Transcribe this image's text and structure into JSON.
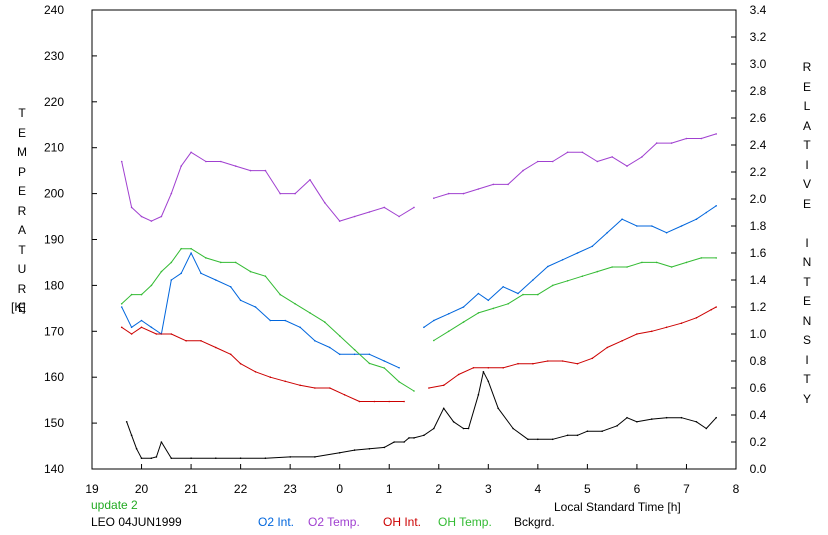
{
  "chart_data": {
    "type": "line",
    "xlabel": "Local Standard Time [h]",
    "x_ticks": [
      "19",
      "20",
      "21",
      "22",
      "23",
      "0",
      "1",
      "2",
      "3",
      "4",
      "5",
      "6",
      "7",
      "8"
    ],
    "y_left_label": "TEMPERATURE",
    "y_left_unit": "[K]",
    "y_left_ticks": [
      "140",
      "150",
      "160",
      "170",
      "180",
      "190",
      "200",
      "210",
      "220",
      "230",
      "240"
    ],
    "y_left_range": [
      140,
      240
    ],
    "y_right_label": "RELATIVE INTENSITY",
    "y_right_ticks": [
      "0.0",
      "0.2",
      "0.4",
      "0.6",
      "0.8",
      "1.0",
      "1.2",
      "1.4",
      "1.6",
      "1.8",
      "2.0",
      "2.2",
      "2.4",
      "2.6",
      "2.8",
      "3.0",
      "3.2",
      "3.4"
    ],
    "y_right_range": [
      0,
      3.4
    ],
    "x_range": [
      19,
      32
    ],
    "grid": false,
    "legend_placement": "bottom",
    "status_text": "update 2",
    "station_date": "LEO 04JUN1999",
    "series": [
      {
        "name": "O2 Int.",
        "axis": "right",
        "color": "#0066dd",
        "x": [
          19.6,
          19.8,
          20.0,
          20.2,
          20.4,
          20.6,
          20.8,
          21.0,
          21.2,
          21.5,
          21.8,
          22.0,
          22.3,
          22.6,
          22.9,
          23.2,
          23.5,
          23.8,
          24.0,
          24.3,
          24.6,
          24.9,
          25.2,
          25.5,
          25.7,
          25.9,
          26.2,
          26.5,
          26.8,
          27.0,
          27.3,
          27.6,
          27.9,
          28.2,
          28.5,
          28.8,
          29.1,
          29.4,
          29.7,
          30.0,
          30.3,
          30.6,
          30.9,
          31.2,
          31.4,
          31.6
        ],
        "y": [
          1.2,
          1.05,
          1.1,
          1.05,
          1.0,
          1.4,
          1.45,
          1.6,
          1.45,
          1.4,
          1.35,
          1.25,
          1.2,
          1.1,
          1.1,
          1.05,
          0.95,
          0.9,
          0.85,
          0.85,
          0.85,
          0.8,
          0.75,
          null,
          1.05,
          1.1,
          1.15,
          1.2,
          1.3,
          1.25,
          1.35,
          1.3,
          1.4,
          1.5,
          1.55,
          1.6,
          1.65,
          1.75,
          1.85,
          1.8,
          1.8,
          1.75,
          1.8,
          1.85,
          1.9,
          1.95
        ]
      },
      {
        "name": "O2 Temp.",
        "axis": "left",
        "color": "#a040d0",
        "x": [
          19.6,
          19.8,
          20.0,
          20.2,
          20.4,
          20.6,
          20.8,
          21.0,
          21.3,
          21.6,
          21.9,
          22.2,
          22.5,
          22.8,
          23.1,
          23.4,
          23.7,
          24.0,
          24.3,
          24.6,
          24.9,
          25.2,
          25.5,
          25.7,
          25.9,
          26.2,
          26.5,
          26.8,
          27.1,
          27.4,
          27.7,
          28.0,
          28.3,
          28.6,
          28.9,
          29.2,
          29.5,
          29.8,
          30.1,
          30.4,
          30.7,
          31.0,
          31.3,
          31.6
        ],
        "y": [
          207,
          197,
          195,
          194,
          195,
          200,
          206,
          209,
          207,
          207,
          206,
          205,
          205,
          200,
          200,
          203,
          198,
          194,
          195,
          196,
          197,
          195,
          197,
          null,
          199,
          200,
          200,
          201,
          202,
          202,
          205,
          207,
          207,
          209,
          209,
          207,
          208,
          206,
          208,
          211,
          211,
          212,
          212,
          213
        ]
      },
      {
        "name": "OH Int.",
        "axis": "right",
        "color": "#cc0000",
        "x": [
          19.6,
          19.8,
          20.0,
          20.3,
          20.6,
          20.9,
          21.2,
          21.5,
          21.8,
          22.0,
          22.3,
          22.6,
          22.9,
          23.2,
          23.5,
          23.8,
          24.1,
          24.4,
          24.7,
          25.0,
          25.3,
          25.6,
          25.8,
          26.1,
          26.4,
          26.7,
          27.0,
          27.3,
          27.6,
          27.9,
          28.2,
          28.5,
          28.8,
          29.1,
          29.4,
          29.7,
          30.0,
          30.3,
          30.6,
          30.9,
          31.2,
          31.5,
          31.6
        ],
        "y": [
          1.05,
          1.0,
          1.05,
          1.0,
          1.0,
          0.95,
          0.95,
          0.9,
          0.85,
          0.78,
          0.72,
          0.68,
          0.65,
          0.62,
          0.6,
          0.6,
          0.55,
          0.5,
          0.5,
          0.5,
          0.5,
          null,
          0.6,
          0.62,
          0.7,
          0.75,
          0.75,
          0.75,
          0.78,
          0.78,
          0.8,
          0.8,
          0.78,
          0.82,
          0.9,
          0.95,
          1.0,
          1.02,
          1.05,
          1.08,
          1.12,
          1.18,
          1.2
        ]
      },
      {
        "name": "OH Temp.",
        "axis": "left",
        "color": "#33bb33",
        "x": [
          19.6,
          19.8,
          20.0,
          20.2,
          20.4,
          20.6,
          20.8,
          21.0,
          21.3,
          21.6,
          21.9,
          22.2,
          22.5,
          22.8,
          23.1,
          23.4,
          23.7,
          24.0,
          24.3,
          24.6,
          24.9,
          25.2,
          25.5,
          25.7,
          25.9,
          26.2,
          26.5,
          26.8,
          27.1,
          27.4,
          27.7,
          28.0,
          28.3,
          28.6,
          28.9,
          29.2,
          29.5,
          29.8,
          30.1,
          30.4,
          30.7,
          31.0,
          31.3,
          31.6
        ],
        "y": [
          176,
          178,
          178,
          180,
          183,
          185,
          188,
          188,
          186,
          185,
          185,
          183,
          182,
          178,
          176,
          174,
          172,
          169,
          166,
          163,
          162,
          159,
          157,
          null,
          168,
          170,
          172,
          174,
          175,
          176,
          178,
          178,
          180,
          181,
          182,
          183,
          184,
          184,
          185,
          185,
          184,
          185,
          186,
          186
        ]
      },
      {
        "name": "Bckgrd.",
        "axis": "right",
        "color": "#000000",
        "x": [
          19.7,
          19.8,
          19.9,
          20.0,
          20.2,
          20.3,
          20.4,
          20.6,
          21.0,
          21.5,
          22.0,
          22.5,
          23.0,
          23.5,
          24.0,
          24.3,
          24.6,
          24.9,
          25.1,
          25.3,
          25.4,
          25.5,
          25.7,
          25.9,
          26.1,
          26.3,
          26.5,
          26.6,
          26.8,
          26.9,
          27.0,
          27.2,
          27.5,
          27.8,
          28.0,
          28.3,
          28.6,
          28.8,
          29.0,
          29.3,
          29.6,
          29.8,
          30.0,
          30.3,
          30.6,
          30.9,
          31.2,
          31.4,
          31.6
        ],
        "y": [
          0.35,
          0.25,
          0.15,
          0.08,
          0.08,
          0.09,
          0.2,
          0.08,
          0.08,
          0.08,
          0.08,
          0.08,
          0.09,
          0.09,
          0.12,
          0.14,
          0.15,
          0.16,
          0.2,
          0.2,
          0.23,
          0.23,
          0.25,
          0.3,
          0.45,
          0.35,
          0.3,
          0.3,
          0.55,
          0.72,
          0.65,
          0.45,
          0.3,
          0.22,
          0.22,
          0.22,
          0.25,
          0.25,
          0.28,
          0.28,
          0.32,
          0.38,
          0.35,
          0.37,
          0.38,
          0.38,
          0.35,
          0.3,
          0.38
        ]
      }
    ]
  }
}
